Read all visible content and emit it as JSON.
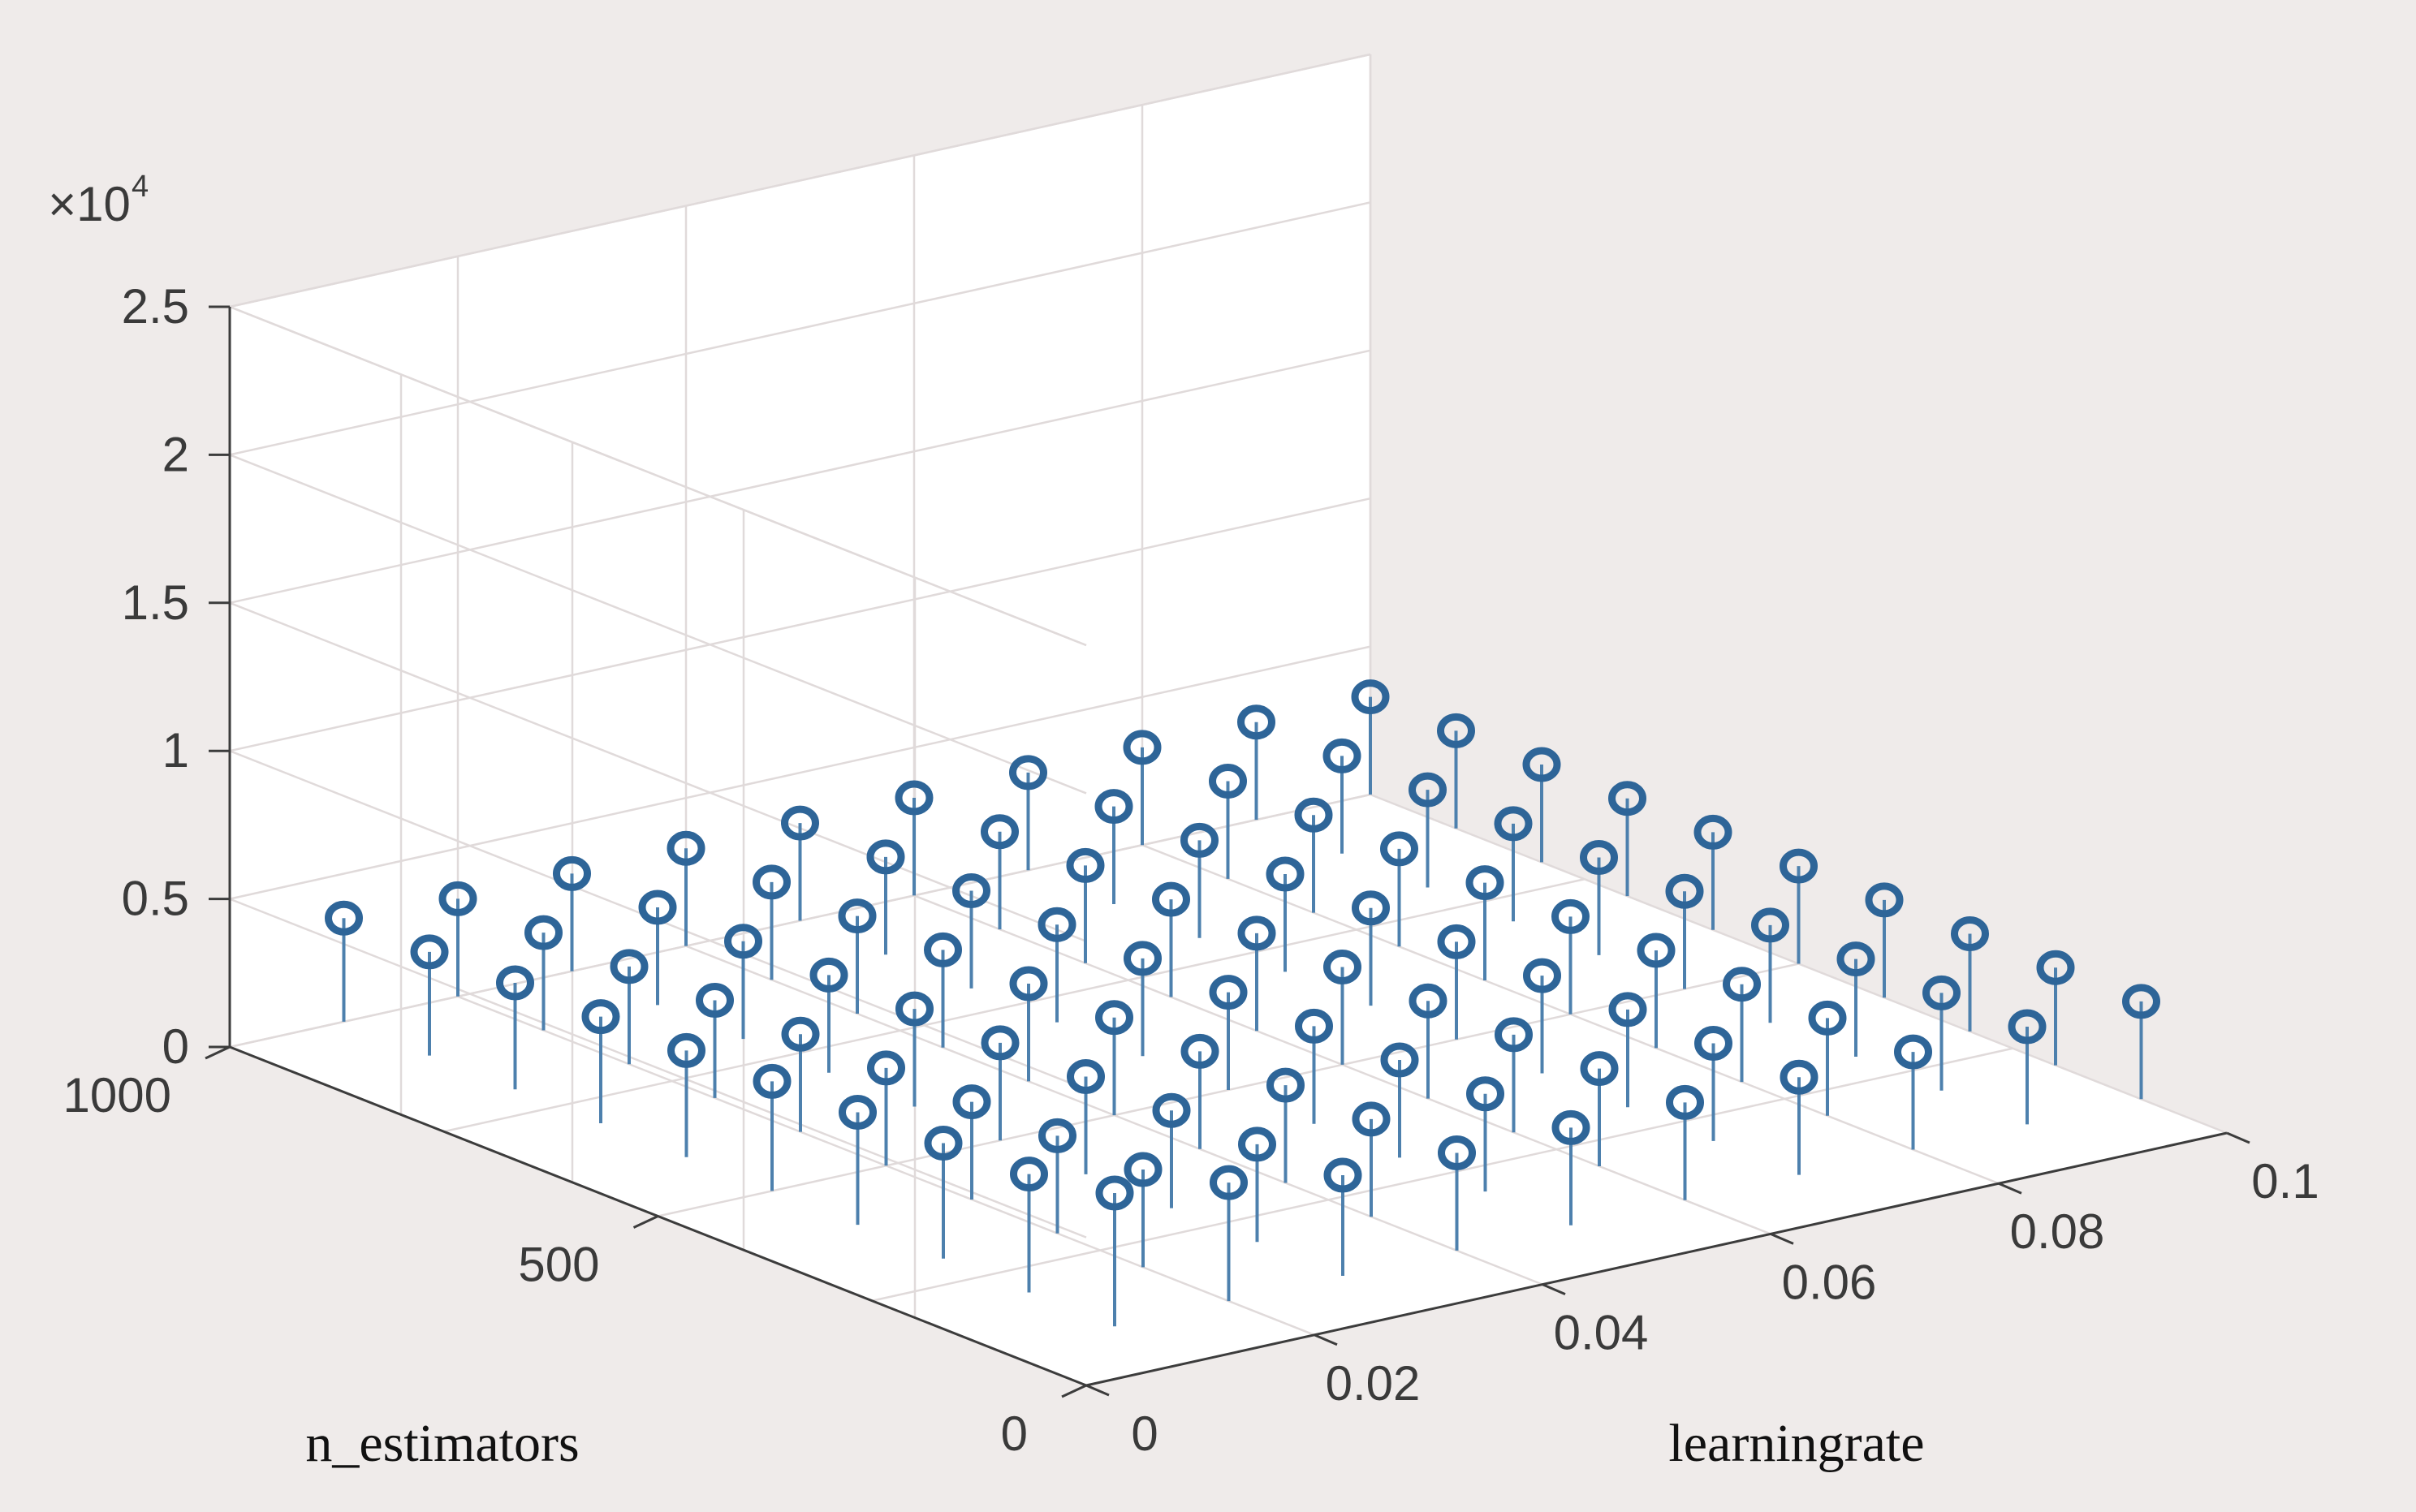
{
  "chart_data": {
    "type": "stem3",
    "multiplier_base": "×10",
    "multiplier_exp": "4",
    "xlabel": "learningrate",
    "ylabel": "n_estimators",
    "zlabel": "",
    "xlim": [
      0,
      0.1
    ],
    "ylim": [
      0,
      1000
    ],
    "zlim": [
      0,
      25000
    ],
    "x_ticks": [
      "0",
      "0.02",
      "0.04",
      "0.06",
      "0.08",
      "0.1"
    ],
    "y_ticks": [
      "0",
      "500",
      "1000"
    ],
    "z_ticks": [
      "0",
      "0.5",
      "1",
      "1.5",
      "2",
      "2.5"
    ],
    "grid": true,
    "marker": "circle",
    "color": "#2e6598",
    "x": [
      0.01,
      0.02,
      0.03,
      0.04,
      0.05,
      0.06,
      0.07,
      0.08,
      0.09,
      0.1
    ],
    "y": [
      100,
      200,
      300,
      400,
      500,
      600,
      700,
      800,
      900,
      1000
    ],
    "z": [
      [
        4500,
        4000,
        3400,
        3300,
        3300,
        3300,
        3300,
        3300,
        3300,
        3300
      ],
      [
        4000,
        3300,
        3300,
        3300,
        3300,
        3300,
        3300,
        3300,
        3300,
        3300
      ],
      [
        3900,
        3300,
        3300,
        3300,
        3300,
        3300,
        3300,
        3300,
        3300,
        3300
      ],
      [
        3800,
        3300,
        3300,
        3300,
        3300,
        3300,
        3300,
        3300,
        3300,
        3300
      ],
      [
        3700,
        3300,
        3300,
        3300,
        3300,
        3300,
        3300,
        3300,
        3300,
        3300
      ],
      [
        3600,
        3300,
        3300,
        3300,
        3300,
        3300,
        3300,
        3300,
        3300,
        3300
      ],
      [
        3600,
        3300,
        3300,
        3300,
        3300,
        3300,
        3300,
        3300,
        3300,
        3300
      ],
      [
        3600,
        3300,
        3300,
        3300,
        3300,
        3300,
        3300,
        3300,
        3300,
        3300
      ],
      [
        3500,
        3300,
        3300,
        3300,
        3300,
        3300,
        3300,
        3300,
        3300,
        3300
      ],
      [
        3500,
        3300,
        3300,
        3300,
        3300,
        3300,
        3300,
        3300,
        3300,
        3300
      ]
    ]
  }
}
